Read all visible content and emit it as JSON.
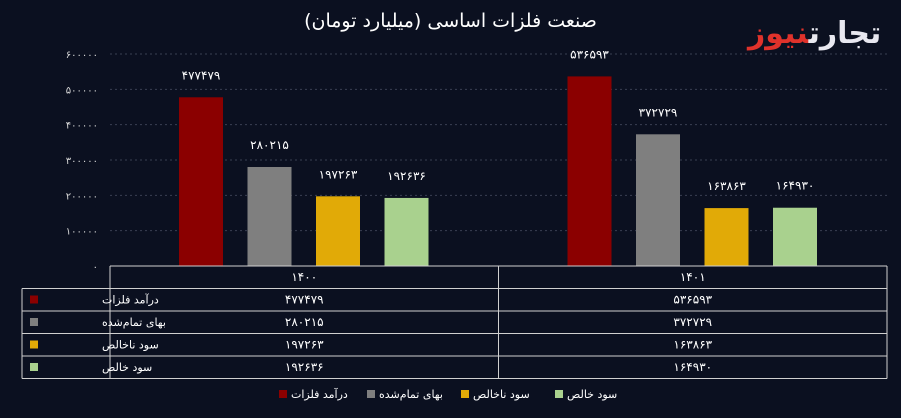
{
  "header": {
    "title": "صنعت فلزات اساسی (میلیارد تومان)",
    "logo_part1": "تجارت",
    "logo_part2": "نیوز"
  },
  "colors": {
    "background": "#0b1020",
    "grid": "#3a3f52",
    "logo_accent": "#e0322b"
  },
  "chart_data": {
    "type": "bar",
    "title": "صنعت فلزات اساسی (میلیارد تومان)",
    "categories": [
      "۱۴۰۰",
      "۱۴۰۱"
    ],
    "series": [
      {
        "name": "درآمد فلزات",
        "color": "#8b0000",
        "values": [
          477479,
          536593
        ],
        "labels": [
          "۴۷۷۴۷۹",
          "۵۳۶۵۹۳"
        ]
      },
      {
        "name": "بهای تمام‌شده",
        "color": "#7f7f7f",
        "values": [
          280215,
          372729
        ],
        "labels": [
          "۲۸۰۲۱۵",
          "۳۷۲۷۲۹"
        ]
      },
      {
        "name": "سود ناخالص",
        "color": "#e1aa07",
        "values": [
          197263,
          163863
        ],
        "labels": [
          "۱۹۷۲۶۳",
          "۱۶۳۸۶۳"
        ]
      },
      {
        "name": "سود خالص",
        "color": "#a9d18e",
        "values": [
          192636,
          164930
        ],
        "labels": [
          "۱۹۲۶۳۶",
          "۱۶۴۹۳۰"
        ]
      }
    ],
    "ylim": [
      0,
      600000
    ],
    "yticks": [
      0,
      100000,
      200000,
      300000,
      400000,
      500000,
      600000
    ],
    "ytick_labels": [
      "۰",
      "۱۰۰۰۰۰",
      "۲۰۰۰۰۰",
      "۳۰۰۰۰۰",
      "۴۰۰۰۰۰",
      "۵۰۰۰۰۰",
      "۶۰۰۰۰۰"
    ],
    "grid": true,
    "legend": "bottom",
    "data_table": true
  }
}
